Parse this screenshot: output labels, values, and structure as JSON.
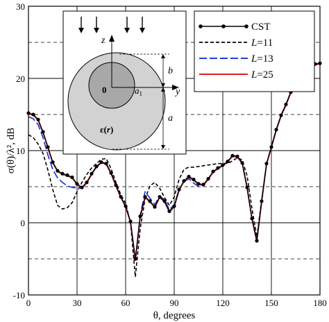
{
  "chart_data": {
    "type": "line",
    "xlabel": "θ, degrees",
    "ylabel": "σ(θ)/λ², dB",
    "xlim": [
      0,
      180
    ],
    "ylim": [
      -10,
      30
    ],
    "xticks": [
      0,
      30,
      60,
      90,
      120,
      150,
      180
    ],
    "yticks": [
      -10,
      0,
      10,
      20,
      30
    ],
    "solid_grid_y": [
      0,
      10,
      20
    ],
    "dashed_grid_y": [
      -5,
      5,
      15,
      25
    ],
    "solid_grid_x": [
      30,
      60,
      90,
      120,
      150
    ],
    "legend_position": "top-right",
    "series": [
      {
        "name": "CST",
        "color": "#000000",
        "style": "solid-markers",
        "x": [
          0,
          3,
          6,
          9,
          12,
          15,
          18,
          21,
          24,
          27,
          30,
          33,
          36,
          39,
          42,
          45,
          48,
          51,
          54,
          57,
          60,
          63,
          66,
          69,
          72,
          75,
          78,
          81,
          84,
          87,
          90,
          93,
          96,
          99,
          102,
          105,
          108,
          111,
          114,
          117,
          120,
          123,
          126,
          129,
          132,
          135,
          138,
          141,
          144,
          147,
          150,
          153,
          156,
          159,
          162,
          165,
          168,
          171,
          174,
          177,
          180
        ],
        "values": [
          15.2,
          15.0,
          14.3,
          12.6,
          10.5,
          8.4,
          7.2,
          6.8,
          6.6,
          6.3,
          5.4,
          4.9,
          5.6,
          6.8,
          7.8,
          8.4,
          8.2,
          6.9,
          5.2,
          3.6,
          2.3,
          0.2,
          -5.0,
          0.9,
          3.6,
          3.0,
          2.2,
          3.6,
          3.0,
          1.6,
          2.3,
          4.6,
          5.8,
          6.4,
          6.0,
          5.4,
          5.3,
          6.1,
          7.1,
          7.6,
          8.0,
          8.5,
          9.3,
          9.2,
          8.3,
          4.9,
          0.6,
          -2.5,
          3.0,
          8.2,
          10.5,
          12.9,
          14.9,
          16.4,
          18.1,
          19.6,
          20.6,
          21.3,
          21.8,
          22.0,
          22.1
        ]
      },
      {
        "name": "L=11",
        "color": "#000000",
        "style": "dashed",
        "x": [
          0,
          3,
          6,
          9,
          12,
          15,
          18,
          21,
          24,
          27,
          30,
          33,
          36,
          39,
          42,
          45,
          48,
          51,
          54,
          57,
          60,
          63,
          66,
          69,
          72,
          75,
          78,
          81,
          84,
          87,
          90,
          93,
          96,
          99,
          102,
          105,
          108,
          111,
          114,
          117,
          120,
          123,
          126,
          129,
          132,
          135,
          138,
          141,
          144,
          147,
          150,
          153,
          156,
          159,
          162,
          165,
          168,
          171,
          174,
          177,
          180
        ],
        "values": [
          12.2,
          11.8,
          10.9,
          9.6,
          7.3,
          4.6,
          2.4,
          1.9,
          2.1,
          2.8,
          4.3,
          5.6,
          6.7,
          7.6,
          8.2,
          8.8,
          8.9,
          7.5,
          5.6,
          3.9,
          2.7,
          0.0,
          -7.5,
          -0.8,
          3.3,
          5.1,
          5.6,
          4.8,
          3.5,
          2.4,
          3.6,
          6.0,
          7.4,
          7.7,
          7.7,
          7.8,
          7.9,
          8.0,
          8.1,
          8.2,
          8.2,
          8.2,
          8.6,
          9.0,
          8.7,
          6.5,
          2.0,
          -2.0,
          3.2,
          8.0,
          10.6,
          12.9,
          14.9,
          16.4,
          18.1,
          19.6,
          20.6,
          21.3,
          21.8,
          22.0,
          22.1
        ]
      },
      {
        "name": "L=13",
        "color": "#1f3fd6",
        "style": "long-dash",
        "x": [
          0,
          3,
          6,
          9,
          12,
          15,
          18,
          21,
          24,
          27,
          30,
          33,
          36,
          39,
          42,
          45,
          48,
          51,
          54,
          57,
          60,
          63,
          66,
          69,
          72,
          75,
          78,
          81,
          84,
          87,
          90,
          93,
          96,
          99,
          102,
          105,
          108,
          111,
          114,
          117,
          120,
          123,
          126,
          129,
          132,
          135,
          138,
          141,
          144,
          147,
          150,
          153,
          156,
          159,
          162,
          165,
          168,
          171,
          174,
          177,
          180
        ],
        "values": [
          14.7,
          14.4,
          13.6,
          11.8,
          9.4,
          7.4,
          6.2,
          5.6,
          5.1,
          4.9,
          4.8,
          4.8,
          5.5,
          6.8,
          7.8,
          8.3,
          8.2,
          6.9,
          5.2,
          3.6,
          2.2,
          0.1,
          -5.4,
          1.0,
          4.3,
          3.4,
          2.5,
          3.7,
          3.2,
          1.8,
          2.5,
          4.6,
          5.7,
          6.1,
          5.5,
          5.0,
          5.2,
          6.1,
          7.0,
          7.5,
          7.9,
          8.5,
          9.3,
          9.2,
          8.3,
          4.9,
          0.6,
          -2.4,
          3.0,
          8.2,
          10.5,
          12.9,
          14.9,
          16.4,
          18.1,
          19.6,
          20.6,
          21.3,
          21.8,
          22.0,
          22.1
        ]
      },
      {
        "name": "L=25",
        "color": "#e01b1b",
        "style": "solid",
        "x": [
          0,
          3,
          6,
          9,
          12,
          15,
          18,
          21,
          24,
          27,
          30,
          33,
          36,
          39,
          42,
          45,
          48,
          51,
          54,
          57,
          60,
          63,
          66,
          69,
          72,
          75,
          78,
          81,
          84,
          87,
          90,
          93,
          96,
          99,
          102,
          105,
          108,
          111,
          114,
          117,
          120,
          123,
          126,
          129,
          132,
          135,
          138,
          141,
          144,
          147,
          150,
          153,
          156,
          159,
          162,
          165,
          168,
          171,
          174,
          177,
          180
        ],
        "values": [
          15.1,
          14.9,
          14.2,
          12.5,
          10.4,
          8.3,
          7.1,
          6.7,
          6.5,
          6.2,
          5.3,
          4.8,
          5.5,
          6.7,
          7.7,
          8.3,
          8.1,
          6.8,
          5.1,
          3.5,
          2.2,
          0.1,
          -5.2,
          0.8,
          3.5,
          2.9,
          2.1,
          3.5,
          2.9,
          1.5,
          2.2,
          4.5,
          5.7,
          6.3,
          5.9,
          5.3,
          5.2,
          6.0,
          7.0,
          7.5,
          7.9,
          8.4,
          9.2,
          9.1,
          8.2,
          4.8,
          0.5,
          -2.6,
          2.9,
          8.1,
          10.4,
          12.8,
          14.8,
          16.3,
          18.0,
          19.5,
          20.5,
          21.2,
          21.7,
          21.9,
          22.0
        ]
      }
    ],
    "inset": {
      "z_label": "z",
      "y_label": "y",
      "origin_label": "0",
      "a1_label": "a",
      "a1_subscript": "1",
      "b_label": "b",
      "a_label": "a",
      "eps_label": "ε(",
      "eps_r": "r",
      "eps_close": ")"
    }
  }
}
